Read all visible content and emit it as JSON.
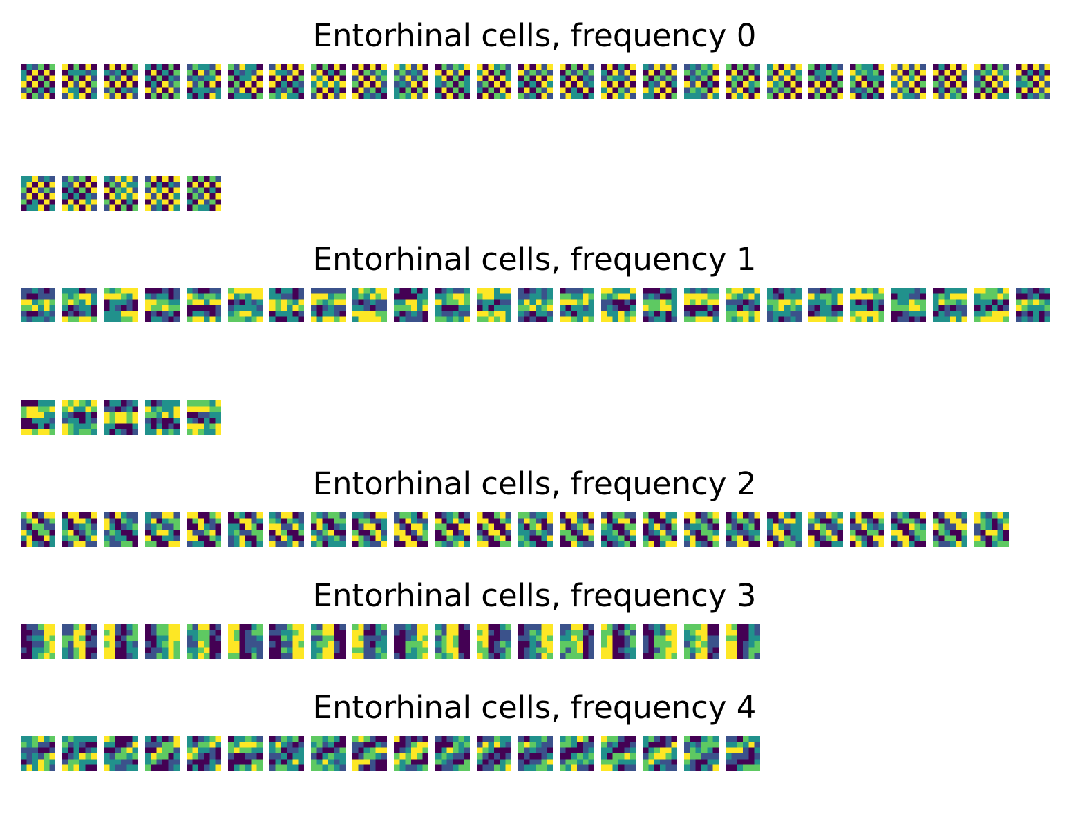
{
  "figure": {
    "sections": [
      {
        "title": "Entorhinal cells, frequency 0",
        "tile_rows": [
          25,
          5
        ]
      },
      {
        "title": "Entorhinal cells, frequency 1",
        "tile_rows": [
          25,
          5
        ]
      },
      {
        "title": "Entorhinal cells, frequency 2",
        "tile_rows": [
          24
        ]
      },
      {
        "title": "Entorhinal cells, frequency 3",
        "tile_rows": [
          18
        ]
      },
      {
        "title": "Entorhinal cells, frequency 4",
        "tile_rows": [
          18
        ]
      }
    ]
  },
  "chart_data": {
    "type": "heatmap",
    "colormap": "viridis",
    "colors": [
      "#440154",
      "#3b528b",
      "#21918c",
      "#5ec962",
      "#fde725"
    ],
    "grid_per_tile": [
      6,
      6
    ],
    "axes_visible": false,
    "panels": [
      {
        "title": "Entorhinal cells, frequency 0",
        "n_cells": 30,
        "pattern": "checkerboard"
      },
      {
        "title": "Entorhinal cells, frequency 1",
        "n_cells": 30,
        "pattern": "horizontal-stripes"
      },
      {
        "title": "Entorhinal cells, frequency 2",
        "n_cells": 24,
        "pattern": "diagonal-stripes"
      },
      {
        "title": "Entorhinal cells, frequency 3",
        "n_cells": 18,
        "pattern": "blocks"
      },
      {
        "title": "Entorhinal cells, frequency 4",
        "n_cells": 18,
        "pattern": "mixed"
      }
    ]
  }
}
